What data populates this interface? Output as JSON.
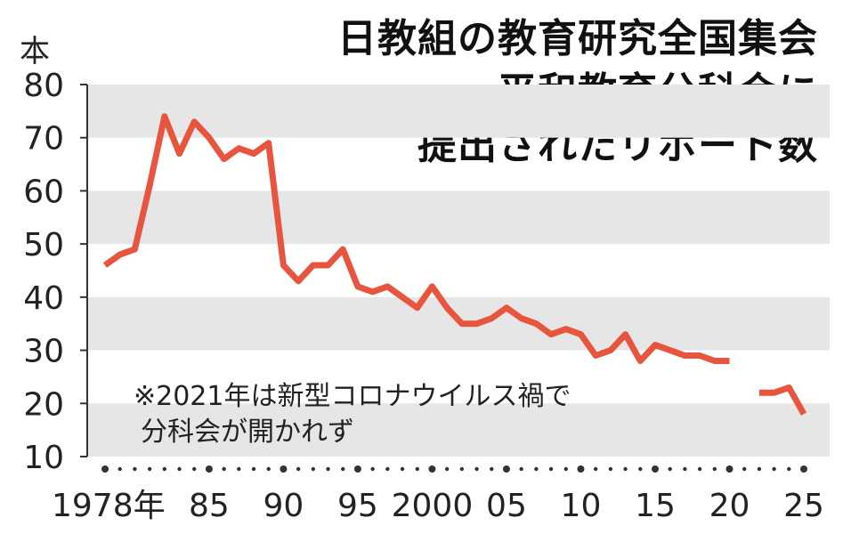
{
  "title": [
    "日教組の教育研究全国集会",
    "平和教育分科会に",
    "提出されたリポート数"
  ],
  "y_unit": "本",
  "note": [
    "※2021年は新型コロナウイルス禍で",
    "分科会が開かれず"
  ],
  "colors": {
    "line": "#e8553e",
    "band": "#e6e6e6",
    "text": "#222222"
  },
  "chart_data": {
    "type": "line",
    "ylim": [
      10,
      80
    ],
    "yticks": [
      10,
      20,
      30,
      40,
      50,
      60,
      70,
      80
    ],
    "xlim": [
      1978,
      2025
    ],
    "xtick_labels": [
      {
        "x": 1978,
        "label": "1978年"
      },
      {
        "x": 1985,
        "label": "85"
      },
      {
        "x": 1990,
        "label": "90"
      },
      {
        "x": 1995,
        "label": "95"
      },
      {
        "x": 2000,
        "label": "2000"
      },
      {
        "x": 2005,
        "label": "05"
      },
      {
        "x": 2010,
        "label": "10"
      },
      {
        "x": 2015,
        "label": "15"
      },
      {
        "x": 2020,
        "label": "20"
      },
      {
        "x": 2025,
        "label": "25"
      }
    ],
    "series": [
      {
        "x": [
          1978,
          1979,
          1980,
          1981,
          1982,
          1983,
          1984,
          1985,
          1986,
          1987,
          1988,
          1989,
          1990,
          1991,
          1992,
          1993,
          1994,
          1995,
          1996,
          1997,
          1998,
          1999,
          2000,
          2001,
          2002,
          2003,
          2004,
          2005,
          2006,
          2007,
          2008,
          2009,
          2010,
          2011,
          2012,
          2013,
          2014,
          2015,
          2016,
          2017,
          2018,
          2019,
          2020,
          2021,
          2022,
          2023,
          2024,
          2025
        ],
        "y": [
          46,
          48,
          49,
          61,
          74,
          67,
          73,
          70,
          66,
          68,
          67,
          69,
          46,
          43,
          46,
          46,
          49,
          42,
          41,
          42,
          40,
          38,
          42,
          38,
          35,
          35,
          36,
          38,
          36,
          35,
          33,
          34,
          33,
          29,
          30,
          33,
          28,
          31,
          30,
          29,
          29,
          28,
          28,
          null,
          22,
          22,
          23,
          18
        ]
      }
    ],
    "grid": "horizontal bands",
    "legend": "none"
  }
}
